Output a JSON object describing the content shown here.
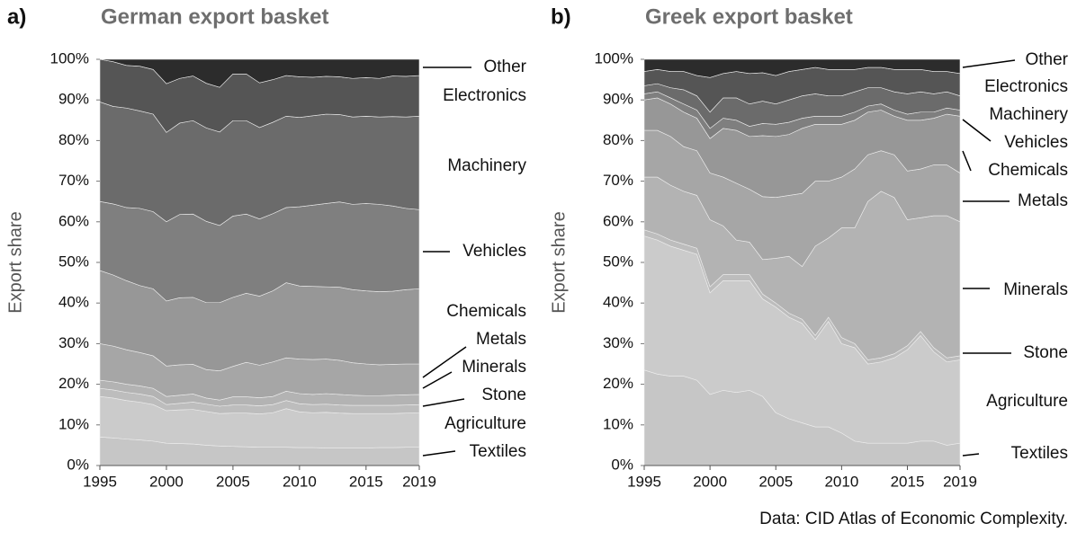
{
  "chart_data": [
    {
      "type": "stacked-area",
      "panel_label": "a)",
      "title": "German export basket",
      "ylabel": "Export share",
      "x": [
        1995,
        1996,
        1997,
        1998,
        1999,
        2000,
        2001,
        2002,
        2003,
        2004,
        2005,
        2006,
        2007,
        2008,
        2009,
        2010,
        2011,
        2012,
        2013,
        2014,
        2015,
        2016,
        2017,
        2018,
        2019
      ],
      "xlim": [
        1995,
        2019
      ],
      "xticks": [
        1995,
        2000,
        2005,
        2010,
        2015,
        2019
      ],
      "ylim": [
        0,
        100
      ],
      "yticks": [
        {
          "value": 0,
          "label": "0%"
        },
        {
          "value": 10,
          "label": "10%"
        },
        {
          "value": 20,
          "label": "20%"
        },
        {
          "value": 30,
          "label": "30%"
        },
        {
          "value": 40,
          "label": "40%"
        },
        {
          "value": 50,
          "label": "50%"
        },
        {
          "value": 60,
          "label": "60%"
        },
        {
          "value": 70,
          "label": "70%"
        },
        {
          "value": 80,
          "label": "80%"
        },
        {
          "value": 90,
          "label": "90%"
        },
        {
          "value": 100,
          "label": "100%"
        }
      ],
      "series": [
        {
          "name": "Textiles",
          "color": "#c6c6c6",
          "values": [
            7,
            6.8,
            6.5,
            6.3,
            6,
            5.5,
            5.4,
            5.3,
            5,
            4.8,
            4.7,
            4.6,
            4.5,
            4.5,
            4.5,
            4.4,
            4.4,
            4.3,
            4.3,
            4.3,
            4.3,
            4.4,
            4.4,
            4.5,
            4.5
          ]
        },
        {
          "name": "Agriculture",
          "color": "#cbcbcb",
          "values": [
            10,
            9.8,
            9.5,
            9.3,
            9,
            8,
            8.3,
            8.5,
            8.3,
            8,
            8.2,
            8.3,
            8.2,
            8.5,
            9.5,
            8.8,
            8.6,
            8.8,
            8.6,
            8.5,
            8.5,
            8.4,
            8.4,
            8.4,
            8.5
          ]
        },
        {
          "name": "Stone",
          "color": "#bdbdbd",
          "values": [
            2,
            2,
            2,
            2,
            2,
            1.5,
            1.6,
            1.8,
            1.8,
            1.8,
            2,
            2,
            2,
            2,
            2,
            2,
            2,
            2,
            2,
            2,
            2,
            2,
            2,
            2,
            2
          ]
        },
        {
          "name": "Minerals",
          "color": "#b3b3b3",
          "values": [
            2,
            2,
            2,
            2,
            2,
            2,
            2,
            2,
            1.5,
            1.5,
            2,
            2,
            2,
            2,
            2.3,
            2.5,
            2.5,
            2.6,
            2.6,
            2.5,
            2.4,
            2.4,
            2.5,
            2.5,
            2.5
          ]
        },
        {
          "name": "Metals",
          "color": "#a6a6a6",
          "values": [
            9,
            8.8,
            8.5,
            8.2,
            8,
            7.5,
            7.5,
            7.3,
            7,
            7.2,
            7.5,
            8.5,
            8,
            8.5,
            8.2,
            8.5,
            8.6,
            8.5,
            8.4,
            8,
            7.8,
            7.6,
            7.6,
            7.6,
            7.5
          ]
        },
        {
          "name": "Chemicals",
          "color": "#979797",
          "values": [
            18,
            17.5,
            17,
            16.5,
            16.5,
            16,
            16.5,
            16.5,
            16.5,
            16.8,
            17,
            17,
            17,
            17.5,
            18.5,
            18,
            18,
            17.8,
            18,
            18,
            18,
            18,
            18,
            18.3,
            18.5
          ]
        },
        {
          "name": "Vehicles",
          "color": "#7f7f7f",
          "values": [
            17,
            17.5,
            18,
            19,
            19,
            19.5,
            20.5,
            20.5,
            20,
            19,
            20,
            19.5,
            19,
            19,
            18.5,
            19.5,
            20,
            20.5,
            21,
            21,
            21.5,
            21.5,
            21,
            20,
            19.5
          ]
        },
        {
          "name": "Machinery",
          "color": "#6b6b6b",
          "values": [
            24.5,
            24,
            24.5,
            24,
            24,
            22,
            22.5,
            23,
            23,
            23,
            23.5,
            23,
            22.5,
            22.5,
            22.5,
            22,
            22,
            22,
            21.5,
            21.5,
            21.5,
            21.5,
            22,
            22.5,
            23
          ]
        },
        {
          "name": "Electronics",
          "color": "#555555",
          "values": [
            10.5,
            11,
            10.5,
            11,
            11,
            12,
            11,
            11,
            11,
            11,
            11.5,
            11.5,
            11,
            10.5,
            10,
            10,
            9.5,
            9.3,
            9.3,
            9.5,
            9.5,
            9.5,
            10,
            10,
            10
          ]
        },
        {
          "name": "Other",
          "color": "#2c2c2c",
          "values": [
            0,
            0.6,
            1.5,
            1.7,
            2.5,
            6,
            4.7,
            4.1,
            5.9,
            6.9,
            3.6,
            3.6,
            5.8,
            5,
            4,
            4.3,
            4.4,
            4.2,
            4.3,
            4.7,
            4.5,
            4.7,
            4.1,
            4.2,
            4
          ]
        }
      ]
    },
    {
      "type": "stacked-area",
      "panel_label": "b)",
      "title": "Greek export basket",
      "ylabel": "Export share",
      "x": [
        1995,
        1996,
        1997,
        1998,
        1999,
        2000,
        2001,
        2002,
        2003,
        2004,
        2005,
        2006,
        2007,
        2008,
        2009,
        2010,
        2011,
        2012,
        2013,
        2014,
        2015,
        2016,
        2017,
        2018,
        2019
      ],
      "xlim": [
        1995,
        2019
      ],
      "xticks": [
        1995,
        2000,
        2005,
        2010,
        2015,
        2019
      ],
      "ylim": [
        0,
        100
      ],
      "yticks": [
        {
          "value": 0,
          "label": "0%"
        },
        {
          "value": 10,
          "label": "10%"
        },
        {
          "value": 20,
          "label": "20%"
        },
        {
          "value": 30,
          "label": "30%"
        },
        {
          "value": 40,
          "label": "40%"
        },
        {
          "value": 50,
          "label": "50%"
        },
        {
          "value": 60,
          "label": "60%"
        },
        {
          "value": 70,
          "label": "70%"
        },
        {
          "value": 80,
          "label": "80%"
        },
        {
          "value": 90,
          "label": "90%"
        },
        {
          "value": 100,
          "label": "100%"
        }
      ],
      "series": [
        {
          "name": "Textiles",
          "color": "#c6c6c6",
          "values": [
            23.5,
            22.5,
            22,
            22,
            21,
            17.5,
            18.5,
            18,
            18.5,
            17,
            13,
            11.5,
            10.5,
            9.5,
            9.5,
            8,
            6,
            5.5,
            5.5,
            5.5,
            5.5,
            6,
            6,
            5,
            5.5
          ]
        },
        {
          "name": "Agriculture",
          "color": "#cbcbcb",
          "values": [
            33,
            33,
            32,
            31,
            31,
            25,
            27,
            27.5,
            27,
            24,
            26,
            25,
            24.5,
            21.5,
            26,
            22,
            23,
            19.5,
            20,
            21,
            23,
            26,
            22,
            20.5,
            20.5
          ]
        },
        {
          "name": "Stone",
          "color": "#bdbdbd",
          "values": [
            1.5,
            1.5,
            1.5,
            1.5,
            1.5,
            1.5,
            1.5,
            1.5,
            1.5,
            1.2,
            1,
            1,
            1,
            1,
            1,
            1.5,
            1,
            1,
            1,
            1,
            1,
            1,
            1,
            1,
            1
          ]
        },
        {
          "name": "Minerals",
          "color": "#b3b3b3",
          "values": [
            13,
            14,
            13.5,
            13,
            13,
            16.5,
            12,
            8.5,
            8,
            8.5,
            11,
            14,
            13,
            22,
            19.5,
            27,
            28.5,
            39,
            41,
            38.5,
            31,
            28,
            32.5,
            35,
            33
          ]
        },
        {
          "name": "Metals",
          "color": "#a6a6a6",
          "values": [
            11.5,
            11.5,
            12,
            11,
            11,
            11.5,
            12,
            14,
            13,
            15.5,
            15,
            15,
            18,
            16,
            14,
            12.5,
            14.5,
            11.5,
            10,
            10.5,
            12,
            12,
            12.5,
            12.5,
            12
          ]
        },
        {
          "name": "Chemicals",
          "color": "#979797",
          "values": [
            7.5,
            8,
            8,
            8.5,
            8,
            8.5,
            12,
            13,
            13,
            15,
            15,
            15,
            16,
            14,
            14,
            13,
            12,
            10.5,
            10,
            9.5,
            12.5,
            12,
            11.5,
            12.5,
            14
          ]
        },
        {
          "name": "Vehicles",
          "color": "#7f7f7f",
          "values": [
            1.5,
            1.5,
            1.5,
            2,
            2,
            2.5,
            2.5,
            2.5,
            2.5,
            3,
            3,
            3,
            2.5,
            2,
            2,
            2,
            2,
            1.5,
            1.5,
            1.5,
            1.5,
            2,
            1.5,
            1.5,
            1.5
          ]
        },
        {
          "name": "Machinery",
          "color": "#6b6b6b",
          "values": [
            2,
            2,
            2.5,
            3.5,
            3.5,
            4,
            5,
            5.5,
            5.5,
            5.5,
            5,
            5.5,
            5.5,
            5.5,
            5,
            5,
            5,
            4.5,
            4,
            4.5,
            5,
            5,
            4.5,
            4,
            3.5
          ]
        },
        {
          "name": "Electronics",
          "color": "#555555",
          "values": [
            3.5,
            3.5,
            4,
            4.5,
            5,
            8.5,
            6,
            6.5,
            7.5,
            7,
            7,
            7,
            6.5,
            6.5,
            6.5,
            6.5,
            5.5,
            5,
            5,
            5.5,
            6,
            5.5,
            5.5,
            5,
            5.5
          ]
        },
        {
          "name": "Other",
          "color": "#2c2c2c",
          "values": [
            3,
            2.5,
            3,
            3,
            4,
            4.5,
            3.5,
            3,
            3.5,
            3.3,
            4,
            3,
            2.5,
            2,
            2.5,
            2.5,
            2.5,
            2,
            2,
            2.5,
            2.5,
            2.5,
            3,
            3,
            3.5
          ]
        }
      ]
    }
  ],
  "source": "Data: CID Atlas of Economic Complexity."
}
